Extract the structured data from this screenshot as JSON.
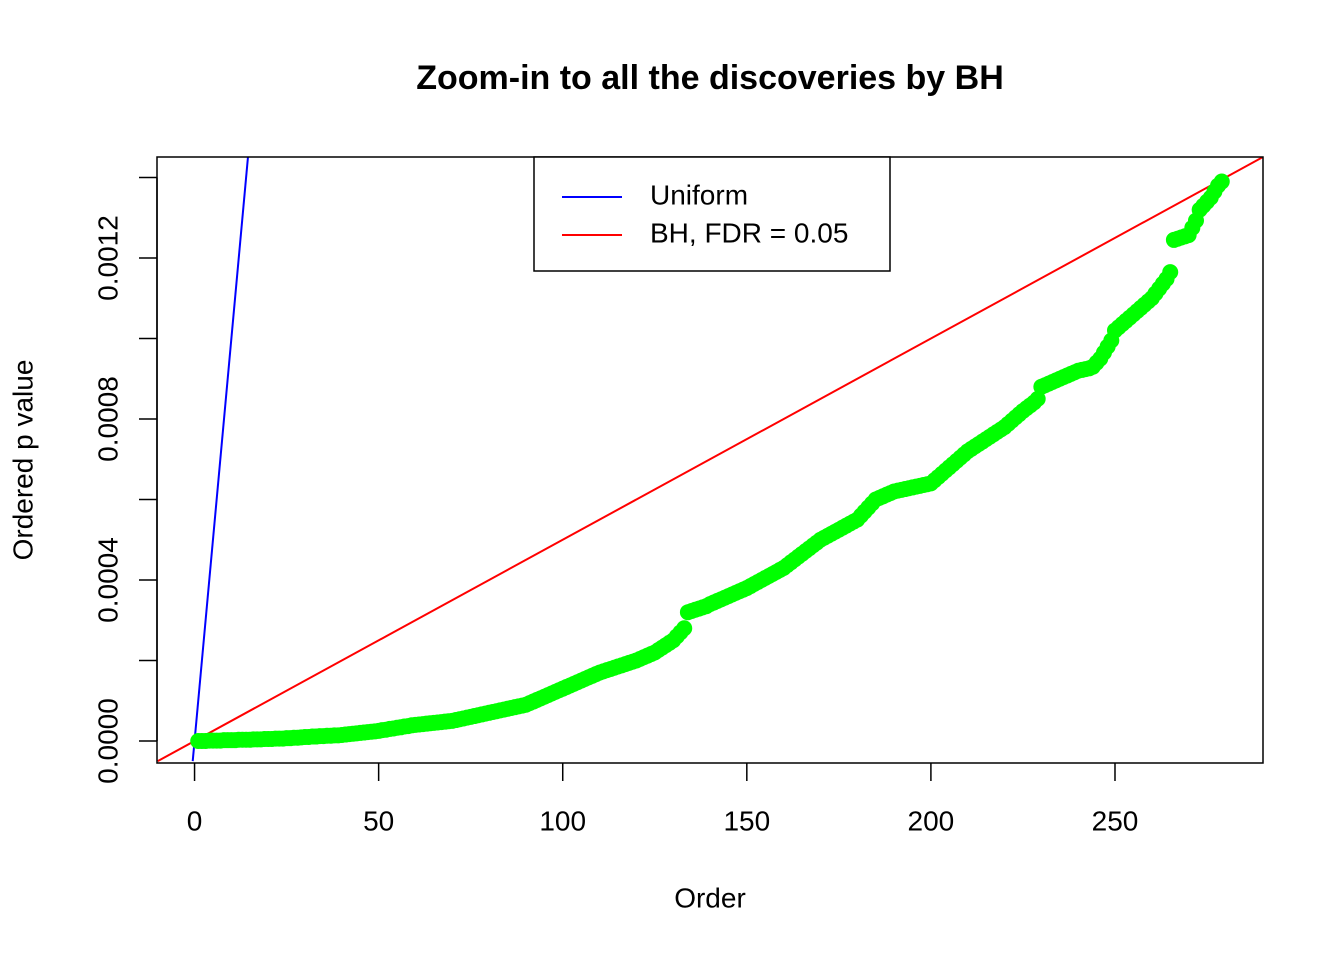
{
  "chart_data": {
    "type": "scatter",
    "title": "Zoom-in to all the discoveries by BH",
    "xlabel": "Order",
    "ylabel": "Ordered p value",
    "xlim": [
      -10.2,
      290.2
    ],
    "ylim": [
      -5.47e-05,
      0.001451
    ],
    "xticks": [
      0,
      50,
      100,
      150,
      200,
      250
    ],
    "yticks": [
      {
        "value": 0,
        "label": "0.0000"
      },
      {
        "value": 0.0004,
        "label": "0.0004"
      },
      {
        "value": 0.0008,
        "label": "0.0008"
      },
      {
        "value": 0.0012,
        "label": "0.0012"
      }
    ],
    "yminor_ticks": [
      0.0002,
      0.0006,
      0.001,
      0.0014
    ],
    "legend": "top",
    "series": [
      {
        "name": "Uniform",
        "type": "line",
        "color": "#0000ff",
        "x": [
          -0.5,
          14.5
        ],
        "values": [
          -5e-05,
          0.00145
        ]
      },
      {
        "name": "BH, FDR = 0.05",
        "type": "line",
        "color": "#ff0000",
        "x": [
          -10,
          290
        ],
        "values": [
          -5e-05,
          0.00145
        ]
      },
      {
        "type": "scatter",
        "color": "#00ff00",
        "x": [
          1,
          2,
          3,
          4,
          5,
          6,
          7,
          8,
          9,
          10,
          11,
          12,
          13,
          14,
          15,
          16,
          17,
          18,
          19,
          20,
          21,
          22,
          23,
          24,
          25,
          26,
          27,
          28,
          29,
          30,
          31,
          32,
          33,
          34,
          35,
          36,
          37,
          38,
          39,
          40,
          41,
          42,
          43,
          44,
          45,
          46,
          47,
          48,
          49,
          50,
          51,
          52,
          53,
          54,
          55,
          56,
          57,
          58,
          59,
          60,
          61,
          62,
          63,
          64,
          65,
          66,
          67,
          68,
          69,
          70,
          71,
          72,
          73,
          74,
          75,
          76,
          77,
          78,
          79,
          80,
          81,
          82,
          83,
          84,
          85,
          86,
          87,
          88,
          89,
          90,
          91,
          92,
          93,
          94,
          95,
          96,
          97,
          98,
          99,
          100,
          101,
          102,
          103,
          104,
          105,
          106,
          107,
          108,
          109,
          110,
          111,
          112,
          113,
          114,
          115,
          116,
          117,
          118,
          119,
          120,
          121,
          122,
          123,
          124,
          125,
          126,
          127,
          128,
          129,
          130,
          131,
          132,
          133,
          134,
          135,
          136,
          137,
          138,
          139,
          140,
          141,
          142,
          143,
          144,
          145,
          146,
          147,
          148,
          149,
          150,
          151,
          152,
          153,
          154,
          155,
          156,
          157,
          158,
          159,
          160,
          161,
          162,
          163,
          164,
          165,
          166,
          167,
          168,
          169,
          170,
          171,
          172,
          173,
          174,
          175,
          176,
          177,
          178,
          179,
          180,
          181,
          182,
          183,
          184,
          185,
          186,
          187,
          188,
          189,
          190,
          191,
          192,
          193,
          194,
          195,
          196,
          197,
          198,
          199,
          200,
          201,
          202,
          203,
          204,
          205,
          206,
          207,
          208,
          209,
          210,
          211,
          212,
          213,
          214,
          215,
          216,
          217,
          218,
          219,
          220,
          221,
          222,
          223,
          224,
          225,
          226,
          227,
          228,
          229,
          230,
          231,
          232,
          233,
          234,
          235,
          236,
          237,
          238,
          239,
          240,
          241,
          242,
          243,
          244,
          245,
          246,
          247,
          248,
          249,
          250,
          251,
          252,
          253,
          254,
          255,
          256,
          257,
          258,
          259,
          260,
          261,
          262,
          263,
          264,
          265,
          266,
          267,
          268,
          269,
          270,
          271,
          272,
          273,
          274,
          275,
          276,
          277,
          278,
          279
        ],
        "values": [
          0,
          0,
          0,
          1e-06,
          1e-06,
          1e-06,
          1e-06,
          2e-06,
          2e-06,
          2e-06,
          2e-06,
          3e-06,
          3e-06,
          3e-06,
          3e-06,
          4e-06,
          4e-06,
          4e-06,
          5e-06,
          5e-06,
          5e-06,
          6e-06,
          6e-06,
          6e-06,
          7e-06,
          7e-06,
          8e-06,
          8e-06,
          9e-06,
          1e-05,
          1e-05,
          1.1e-05,
          1.1e-05,
          1.2e-05,
          1.2e-05,
          1.3e-05,
          1.3e-05,
          1.4e-05,
          1.4e-05,
          1.5e-05,
          1.6e-05,
          1.7e-05,
          1.8e-05,
          1.9e-05,
          2e-05,
          2.1e-05,
          2.2e-05,
          2.3e-05,
          2.4e-05,
          2.5e-05,
          2.7e-05,
          2.8e-05,
          3e-05,
          3.1e-05,
          3.3e-05,
          3.4e-05,
          3.6e-05,
          3.7e-05,
          3.9e-05,
          4e-05,
          4.1e-05,
          4.2e-05,
          4.3e-05,
          4.4e-05,
          4.5e-05,
          4.6e-05,
          4.7e-05,
          4.8e-05,
          4.9e-05,
          5e-05,
          5.2e-05,
          5.4e-05,
          5.6e-05,
          5.8e-05,
          6e-05,
          6.2e-05,
          6.4e-05,
          6.6e-05,
          6.8e-05,
          7e-05,
          7.2e-05,
          7.4e-05,
          7.6e-05,
          7.8e-05,
          8e-05,
          8.2e-05,
          8.4e-05,
          8.6e-05,
          8.8e-05,
          9e-05,
          9.4e-05,
          9.8e-05,
          0.000102,
          0.000106,
          0.00011,
          0.000114,
          0.000118,
          0.000122,
          0.000126,
          0.00013,
          0.000134,
          0.000138,
          0.000142,
          0.000146,
          0.00015,
          0.000154,
          0.000158,
          0.000162,
          0.000166,
          0.00017,
          0.000173,
          0.000176,
          0.000179,
          0.000182,
          0.000185,
          0.000188,
          0.000191,
          0.000194,
          0.000197,
          0.0002,
          0.000204,
          0.000208,
          0.000212,
          0.000216,
          0.00022,
          0.000226,
          0.000232,
          0.000238,
          0.000244,
          0.00025,
          0.00026,
          0.00027,
          0.00028,
          0.00032,
          0.000323,
          0.000326,
          0.000329,
          0.000332,
          0.000335,
          0.00034,
          0.000344,
          0.000348,
          0.000352,
          0.000356,
          0.00036,
          0.000364,
          0.000368,
          0.000372,
          0.000376,
          0.00038,
          0.000385,
          0.00039,
          0.000395,
          0.0004,
          0.000405,
          0.00041,
          0.000415,
          0.00042,
          0.000425,
          0.00043,
          0.000437,
          0.000444,
          0.000451,
          0.000458,
          0.000465,
          0.000472,
          0.000479,
          0.000486,
          0.000493,
          0.0005,
          0.000505,
          0.00051,
          0.000515,
          0.00052,
          0.000525,
          0.00053,
          0.000535,
          0.00054,
          0.000545,
          0.00055,
          0.00056,
          0.00057,
          0.00058,
          0.00059,
          0.0006,
          0.000604,
          0.000608,
          0.000612,
          0.000616,
          0.00062,
          0.000622,
          0.000624,
          0.000626,
          0.000628,
          0.00063,
          0.000632,
          0.000634,
          0.000636,
          0.000638,
          0.00064,
          0.000648,
          0.000656,
          0.000664,
          0.000672,
          0.00068,
          0.000688,
          0.000696,
          0.000704,
          0.000712,
          0.00072,
          0.000726,
          0.000732,
          0.000738,
          0.000744,
          0.00075,
          0.000756,
          0.000762,
          0.000768,
          0.000774,
          0.00078,
          0.000788,
          0.000796,
          0.000804,
          0.000812,
          0.00082,
          0.000827,
          0.000834,
          0.000841,
          0.00085,
          0.00088,
          0.000884,
          0.000888,
          0.000892,
          0.000896,
          0.0009,
          0.000904,
          0.000908,
          0.000912,
          0.000916,
          0.00092,
          0.000922,
          0.000924,
          0.000926,
          0.00093,
          0.00094,
          0.00095,
          0.000965,
          0.00098,
          0.000995,
          0.00102,
          0.001028,
          0.001036,
          0.001044,
          0.001052,
          0.00106,
          0.001068,
          0.001076,
          0.001084,
          0.001092,
          0.0011,
          0.001112,
          0.001124,
          0.001136,
          0.001148,
          0.001165,
          0.001245,
          0.001248,
          0.001251,
          0.001254,
          0.001257,
          0.001275,
          0.001293,
          0.00132,
          0.00133,
          0.00134,
          0.00135,
          0.001365,
          0.00138,
          0.00139
        ]
      }
    ]
  }
}
